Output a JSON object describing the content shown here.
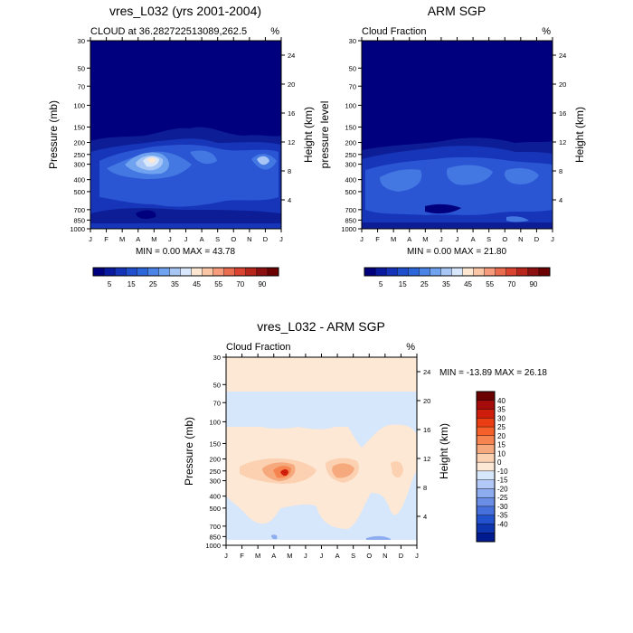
{
  "chart_data": [
    {
      "type": "heatmap",
      "title": "vres_L032 (yrs 2001-2004)",
      "left_label": "CLOUD at 36.282722513089,262.5",
      "right_unit": "%",
      "ylabel": "Pressure (mb)",
      "ylabel_right": "Height (km)",
      "x_ticks": [
        "J",
        "F",
        "M",
        "A",
        "M",
        "J",
        "J",
        "A",
        "S",
        "O",
        "N",
        "D",
        "J"
      ],
      "y_ticks": [
        "30",
        "50",
        "70",
        "100",
        "150",
        "200",
        "250",
        "300",
        "400",
        "500",
        "700",
        "850",
        "1000"
      ],
      "y_ticks_right": [
        "24",
        "20",
        "16",
        "12",
        "8",
        "4"
      ],
      "stats": "MIN =   0.00 MAX =  43.78",
      "colorbar_labels": [
        "5",
        "15",
        "25",
        "35",
        "45",
        "55",
        "70",
        "90"
      ],
      "features": [
        {
          "x": 0.5,
          "y": 0.71,
          "rx": 0.2,
          "ry": 0.05,
          "value": 25
        },
        {
          "x": 0.37,
          "y": 0.65,
          "rx": 0.12,
          "ry": 0.06,
          "value": 35
        },
        {
          "x": 0.37,
          "y": 0.65,
          "rx": 0.06,
          "ry": 0.035,
          "value": 43
        }
      ]
    },
    {
      "type": "heatmap",
      "title": "ARM SGP",
      "left_label": "Cloud Fraction",
      "right_unit": "%",
      "ylabel": "pressure level",
      "ylabel_right": "Height (km)",
      "x_ticks": [
        "J",
        "F",
        "M",
        "A",
        "M",
        "J",
        "J",
        "A",
        "S",
        "O",
        "N",
        "D",
        "J"
      ],
      "y_ticks": [
        "30",
        "50",
        "70",
        "100",
        "150",
        "200",
        "250",
        "300",
        "400",
        "500",
        "700",
        "850",
        "1000"
      ],
      "y_ticks_right": [
        "24",
        "20",
        "16",
        "12",
        "8",
        "4"
      ],
      "stats": "MIN =   0.00 MAX =  21.80",
      "colorbar_labels": [
        "5",
        "15",
        "25",
        "35",
        "45",
        "55",
        "70",
        "90"
      ]
    },
    {
      "type": "heatmap",
      "title": "vres_L032 - ARM SGP",
      "left_label": "Cloud Fraction",
      "right_unit": "%",
      "ylabel": "Pressure (mb)",
      "ylabel_right": "Height (km)",
      "x_ticks": [
        "J",
        "F",
        "M",
        "A",
        "M",
        "J",
        "J",
        "A",
        "S",
        "O",
        "N",
        "D",
        "J"
      ],
      "y_ticks": [
        "30",
        "50",
        "70",
        "100",
        "150",
        "200",
        "250",
        "300",
        "400",
        "500",
        "700",
        "850",
        "1000"
      ],
      "y_ticks_right": [
        "24",
        "20",
        "16",
        "12",
        "8",
        "4"
      ],
      "stats": "MIN = -13.89 MAX =  26.18",
      "colorbar_labels": [
        "40",
        "35",
        "30",
        "25",
        "20",
        "15",
        "10",
        "0",
        "-10",
        "-15",
        "-20",
        "-25",
        "-30",
        "-35",
        "-40"
      ]
    }
  ],
  "colors": {
    "pos_scale": [
      "#00007f",
      "#0a1a9e",
      "#1433b8",
      "#1f4fcc",
      "#2d66d9",
      "#4a83e6",
      "#6fa3ef",
      "#a7c6f5",
      "#d8e7fb",
      "#fde6d2",
      "#fbc6a6",
      "#f69b7c",
      "#ea6c4e",
      "#d9432f",
      "#b8261b",
      "#8c1010",
      "#6b0000"
    ],
    "diff_scale": [
      "#6b0000",
      "#a60b0b",
      "#cf1d0b",
      "#eb3d13",
      "#f5602a",
      "#f68450",
      "#f6a97c",
      "#fbd1b2",
      "#fde8d6",
      "#d6e6fb",
      "#b2c8f6",
      "#8eacf0",
      "#6a8ee6",
      "#4670dc",
      "#2352cf",
      "#0e35b0",
      "#001a8f"
    ]
  }
}
